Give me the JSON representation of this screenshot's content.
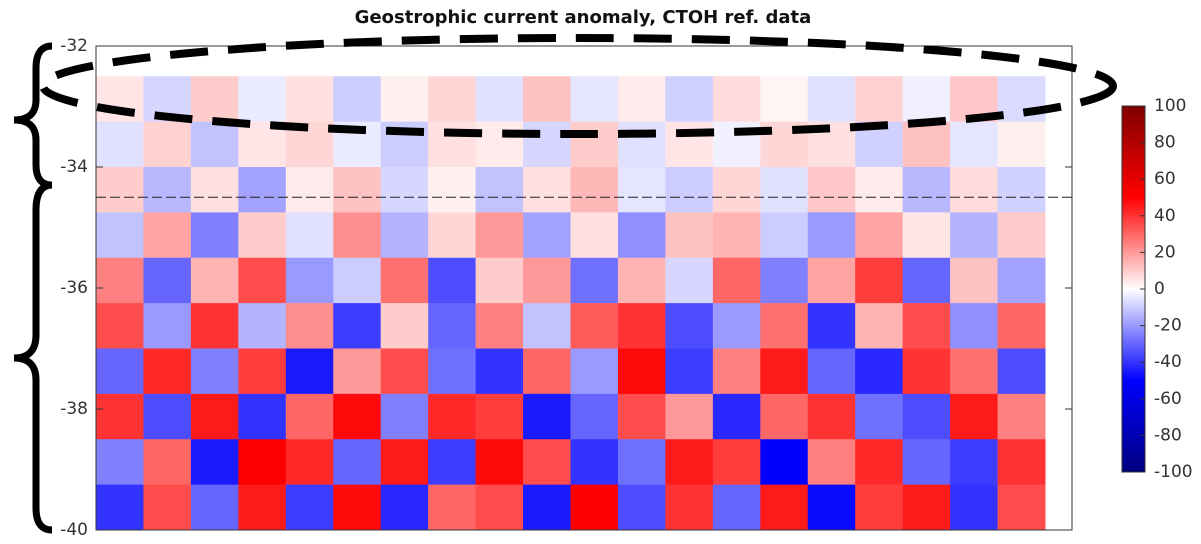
{
  "chart_data": {
    "type": "heatmap",
    "title": "Geostrophic current anomaly, CTOH ref. data",
    "ylim": [
      -40,
      -32
    ],
    "yticks": [
      -32,
      -34,
      -36,
      -38,
      -40
    ],
    "y_edges": [
      -32.5,
      -33.25,
      -34,
      -34.75,
      -35.5,
      -36.25,
      -37,
      -37.75,
      -38.5,
      -39.25,
      -40
    ],
    "reference_line": -34.5,
    "z": [
      [
        5,
        -8,
        10,
        -4,
        6,
        -10,
        3,
        8,
        -6,
        12,
        -5,
        4,
        -9,
        7,
        2,
        -6,
        9,
        -3,
        11,
        -7
      ],
      [
        -6,
        9,
        -12,
        5,
        8,
        -4,
        -10,
        6,
        4,
        -8,
        10,
        -6,
        5,
        -3,
        8,
        6,
        -9,
        12,
        -5,
        3
      ],
      [
        10,
        -14,
        6,
        -18,
        4,
        12,
        -8,
        3,
        -12,
        6,
        14,
        -5,
        -10,
        8,
        -6,
        11,
        4,
        -14,
        7,
        -9
      ],
      [
        -12,
        18,
        -25,
        10,
        -6,
        22,
        -15,
        8,
        20,
        -18,
        6,
        -22,
        12,
        15,
        -10,
        -20,
        18,
        5,
        -15,
        10
      ],
      [
        25,
        -30,
        15,
        35,
        -20,
        -10,
        28,
        -35,
        10,
        20,
        -28,
        15,
        -8,
        30,
        -25,
        18,
        38,
        -30,
        12,
        -18
      ],
      [
        35,
        -20,
        40,
        -15,
        22,
        -38,
        10,
        -30,
        25,
        -12,
        32,
        40,
        -35,
        -20,
        28,
        -40,
        15,
        35,
        -22,
        30
      ],
      [
        -30,
        42,
        -25,
        38,
        -45,
        20,
        35,
        -28,
        -40,
        30,
        -20,
        48,
        -38,
        25,
        45,
        -30,
        -42,
        40,
        28,
        -35
      ],
      [
        40,
        -35,
        45,
        -40,
        30,
        48,
        -25,
        42,
        38,
        -45,
        -30,
        35,
        20,
        -42,
        30,
        40,
        -28,
        -35,
        45,
        25
      ],
      [
        -25,
        30,
        -45,
        50,
        42,
        -30,
        45,
        -38,
        48,
        35,
        -40,
        -28,
        45,
        38,
        -50,
        25,
        42,
        -30,
        -38,
        40
      ],
      [
        -40,
        35,
        -30,
        45,
        -38,
        48,
        -42,
        30,
        35,
        -45,
        50,
        -35,
        40,
        -30,
        45,
        -48,
        38,
        45,
        -40,
        35
      ]
    ],
    "colorbar": {
      "lim": [
        -100,
        100
      ],
      "ticks": [
        100,
        80,
        60,
        40,
        20,
        0,
        -20,
        -40,
        -60,
        -80,
        -100
      ]
    }
  }
}
